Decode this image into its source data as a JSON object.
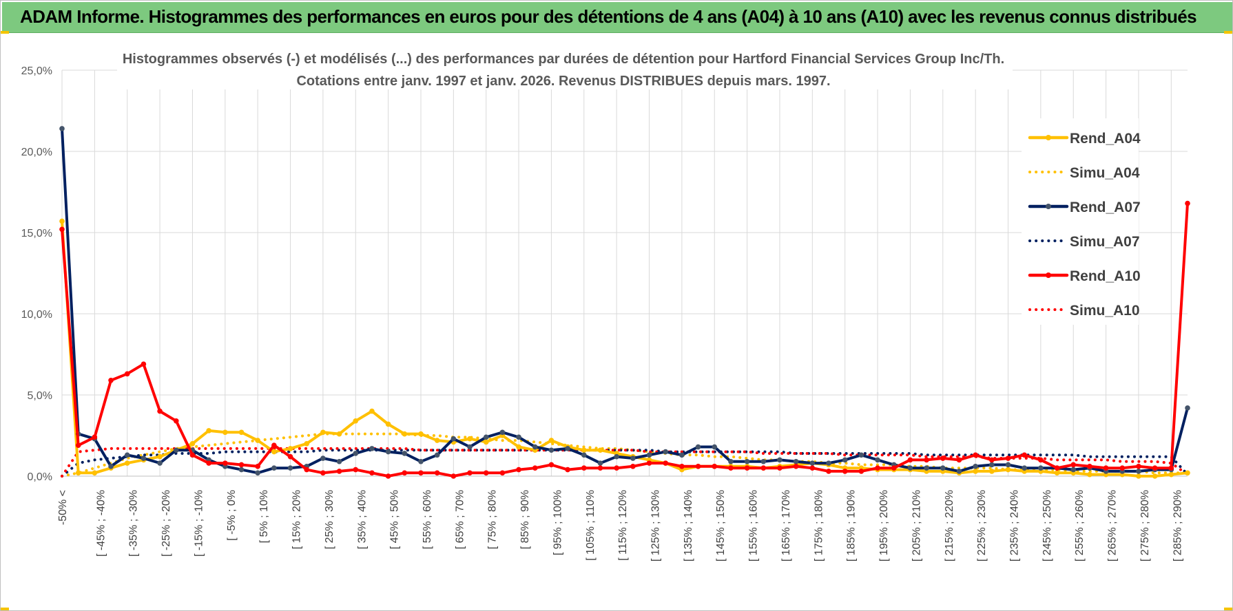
{
  "header": {
    "title": "ADAM Informe. Histogrammes des performances en euros pour des détentions de 4 ans (A04) à 10 ans (A10) avec les revenus connus distribués"
  },
  "colors": {
    "banner": "#7dc97f",
    "a04": "#ffc000",
    "a07": "#002060",
    "a10": "#ff0000",
    "grid": "#d9d9d9"
  },
  "chart_data": {
    "type": "line",
    "title_line1": "Histogrammes observés (-) et modélisés (...) des performances par durées de détention pour Hartford Financial Services  Group Inc/Th.",
    "title_line2": "Cotations entre janv. 1997 et janv. 2026. Revenus DISTRIBUES depuis mars. 1997.",
    "ylim": [
      0,
      25
    ],
    "y_ticks": [
      "0,0%",
      "5,0%",
      "10,0%",
      "15,0%",
      "20,0%",
      "25,0%"
    ],
    "x_tick_labels": [
      "-50% <",
      "[ -45% ; -40%",
      "[ -35% ; -30%",
      "[ -25% ; -20%",
      "[ -15% ; -10%",
      "[ -5% ; 0%",
      "[ 5% ; 10%",
      "[ 15% ; 20%",
      "[ 25% ; 30%",
      "[ 35% ; 40%",
      "[ 45% ; 50%",
      "[ 55% ; 60%",
      "[ 65% ; 70%",
      "[ 75% ; 80%",
      "[ 85% ; 90%",
      "[ 95% ; 100%",
      "[ 105% ; 110%",
      "[ 115% ; 120%",
      "[ 125% ; 130%",
      "[ 135% ; 140%",
      "[ 145% ; 150%",
      "[ 155% ; 160%",
      "[ 165% ; 170%",
      "[ 175% ; 180%",
      "[ 185% ; 190%",
      "[ 195% ; 200%",
      "[ 205% ; 210%",
      "[ 215% ; 220%",
      "[ 225% ; 230%",
      "[ 235% ; 240%",
      "[ 245% ; 250%",
      "[ 255% ; 260%",
      "[ 265% ; 270%",
      "[ 275% ; 280%",
      "[ 285% ; 290%"
    ],
    "legend_position": "right",
    "grid": true,
    "series": [
      {
        "name": "Rend_A04",
        "style": "solid",
        "color": "#ffc000",
        "values": [
          15.7,
          0.2,
          0.2,
          0.5,
          0.8,
          1.0,
          1.2,
          1.6,
          2.0,
          2.8,
          2.7,
          2.7,
          2.2,
          1.5,
          1.7,
          2.0,
          2.7,
          2.6,
          3.4,
          4.0,
          3.2,
          2.6,
          2.6,
          2.2,
          2.1,
          2.3,
          2.1,
          2.5,
          1.8,
          1.6,
          2.2,
          1.8,
          1.6,
          1.6,
          1.4,
          1.2,
          1.0,
          0.8,
          0.4,
          0.6,
          0.6,
          0.6,
          0.6,
          0.5,
          0.6,
          0.7,
          0.8,
          0.7,
          0.5,
          0.5,
          0.4,
          0.4,
          0.4,
          0.3,
          0.3,
          0.2,
          0.3,
          0.3,
          0.4,
          0.3,
          0.3,
          0.2,
          0.2,
          0.1,
          0.1,
          0.1,
          0.0,
          0.0,
          0.1,
          0.2
        ]
      },
      {
        "name": "Simu_A04",
        "style": "dotted",
        "color": "#ffc000",
        "values": [
          0.0,
          0.2,
          0.5,
          0.8,
          1.1,
          1.3,
          1.5,
          1.7,
          1.8,
          1.9,
          2.0,
          2.1,
          2.2,
          2.3,
          2.4,
          2.5,
          2.6,
          2.6,
          2.6,
          2.6,
          2.6,
          2.6,
          2.5,
          2.5,
          2.4,
          2.4,
          2.3,
          2.2,
          2.2,
          2.1,
          2.0,
          1.9,
          1.8,
          1.7,
          1.7,
          1.6,
          1.5,
          1.4,
          1.3,
          1.3,
          1.2,
          1.2,
          1.1,
          1.0,
          1.0,
          0.9,
          0.9,
          0.8,
          0.8,
          0.7,
          0.7,
          0.7,
          0.6,
          0.6,
          0.5,
          0.5,
          0.5,
          0.5,
          0.4,
          0.4,
          0.4,
          0.4,
          0.3,
          0.3,
          0.3,
          0.3,
          0.3,
          0.2,
          0.2,
          0.2
        ]
      },
      {
        "name": "Rend_A07",
        "style": "solid",
        "color": "#002060",
        "values": [
          21.4,
          2.6,
          2.3,
          0.6,
          1.3,
          1.1,
          0.8,
          1.6,
          1.6,
          1.0,
          0.6,
          0.4,
          0.2,
          0.5,
          0.5,
          0.6,
          1.1,
          0.9,
          1.4,
          1.7,
          1.5,
          1.4,
          0.9,
          1.3,
          2.3,
          1.8,
          2.4,
          2.7,
          2.4,
          1.8,
          1.6,
          1.7,
          1.3,
          0.8,
          1.2,
          1.1,
          1.3,
          1.5,
          1.3,
          1.8,
          1.8,
          0.9,
          0.9,
          0.9,
          1.0,
          0.9,
          0.8,
          0.8,
          1.0,
          1.3,
          1.0,
          0.7,
          0.5,
          0.5,
          0.5,
          0.3,
          0.6,
          0.7,
          0.7,
          0.5,
          0.5,
          0.5,
          0.4,
          0.5,
          0.3,
          0.3,
          0.3,
          0.4,
          0.4,
          4.2
        ]
      },
      {
        "name": "Simu_A07",
        "style": "dotted",
        "color": "#002060",
        "values": [
          0.0,
          0.8,
          1.0,
          1.1,
          1.2,
          1.3,
          1.3,
          1.4,
          1.4,
          1.4,
          1.5,
          1.5,
          1.5,
          1.5,
          1.5,
          1.5,
          1.6,
          1.6,
          1.6,
          1.6,
          1.6,
          1.6,
          1.6,
          1.6,
          1.6,
          1.6,
          1.6,
          1.6,
          1.6,
          1.6,
          1.6,
          1.6,
          1.6,
          1.6,
          1.6,
          1.6,
          1.6,
          1.5,
          1.5,
          1.5,
          1.5,
          1.5,
          1.5,
          1.5,
          1.5,
          1.4,
          1.4,
          1.4,
          1.4,
          1.4,
          1.4,
          1.4,
          1.4,
          1.3,
          1.3,
          1.3,
          1.3,
          1.3,
          1.3,
          1.3,
          1.3,
          1.3,
          1.3,
          1.2,
          1.2,
          1.2,
          1.2,
          1.2,
          1.2,
          0.1
        ]
      },
      {
        "name": "Rend_A10",
        "style": "solid",
        "color": "#ff0000",
        "values": [
          15.2,
          1.9,
          2.4,
          5.9,
          6.3,
          6.9,
          4.0,
          3.4,
          1.3,
          0.8,
          0.8,
          0.7,
          0.6,
          1.9,
          1.2,
          0.4,
          0.2,
          0.3,
          0.4,
          0.2,
          0.0,
          0.2,
          0.2,
          0.2,
          0.0,
          0.2,
          0.2,
          0.2,
          0.4,
          0.5,
          0.7,
          0.4,
          0.5,
          0.5,
          0.5,
          0.6,
          0.8,
          0.8,
          0.6,
          0.6,
          0.6,
          0.5,
          0.5,
          0.5,
          0.5,
          0.6,
          0.5,
          0.3,
          0.3,
          0.3,
          0.5,
          0.5,
          1.0,
          1.0,
          1.1,
          1.0,
          1.3,
          1.0,
          1.1,
          1.3,
          1.0,
          0.5,
          0.7,
          0.6,
          0.5,
          0.5,
          0.6,
          0.5,
          0.5,
          16.8
        ]
      },
      {
        "name": "Simu_A10",
        "style": "dotted",
        "color": "#ff0000",
        "values": [
          0.0,
          1.5,
          1.6,
          1.7,
          1.7,
          1.7,
          1.7,
          1.7,
          1.7,
          1.7,
          1.7,
          1.7,
          1.7,
          1.7,
          1.7,
          1.7,
          1.7,
          1.7,
          1.7,
          1.7,
          1.7,
          1.7,
          1.6,
          1.6,
          1.6,
          1.6,
          1.6,
          1.6,
          1.6,
          1.6,
          1.6,
          1.6,
          1.6,
          1.6,
          1.6,
          1.6,
          1.5,
          1.5,
          1.5,
          1.5,
          1.5,
          1.5,
          1.5,
          1.4,
          1.4,
          1.4,
          1.4,
          1.4,
          1.3,
          1.3,
          1.3,
          1.3,
          1.3,
          1.2,
          1.2,
          1.2,
          1.2,
          1.1,
          1.1,
          1.1,
          1.1,
          1.0,
          1.0,
          1.0,
          1.0,
          0.9,
          0.9,
          0.9,
          0.8,
          0.1
        ]
      }
    ]
  }
}
